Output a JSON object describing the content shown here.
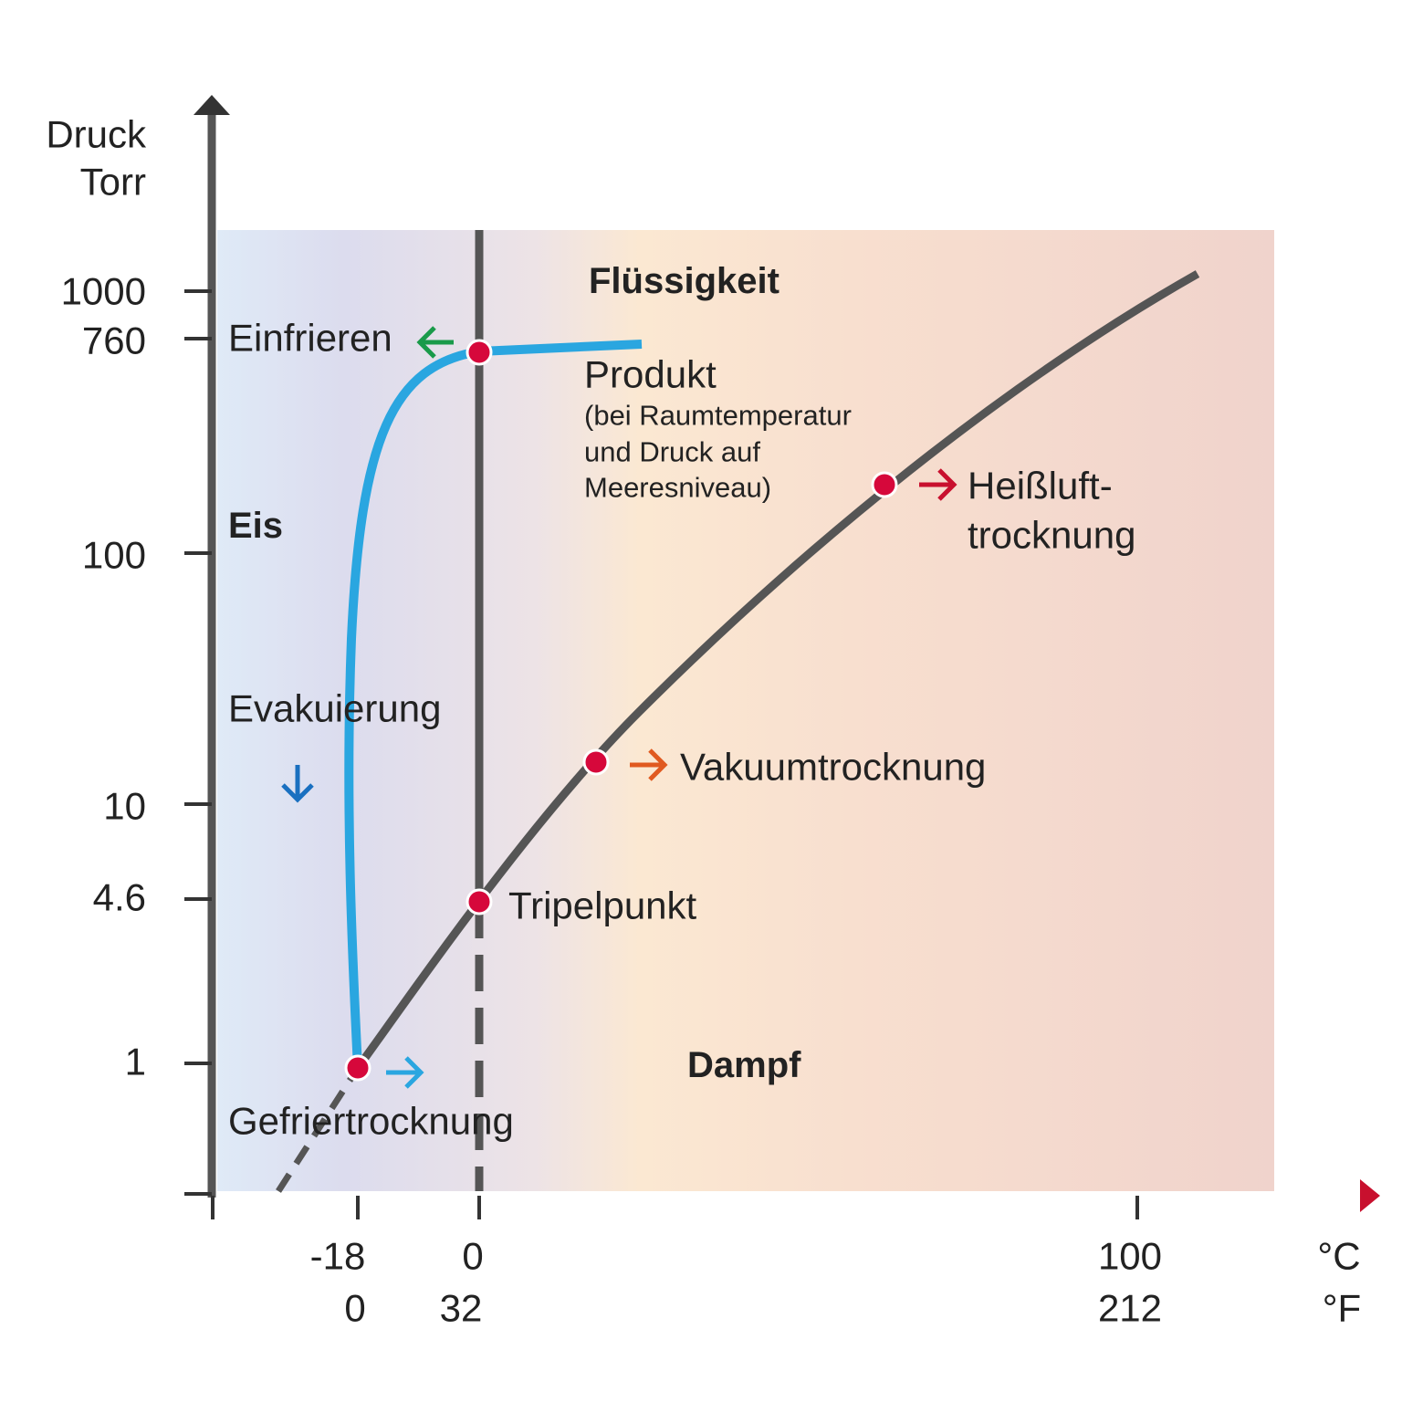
{
  "y_axis": {
    "label_lines": [
      "Druck",
      "Torr"
    ],
    "ticks": [
      "1000",
      "760",
      "100",
      "10",
      "4.6",
      "1"
    ]
  },
  "x_axis": {
    "celsius_ticks": [
      "-18",
      "0",
      "100"
    ],
    "celsius_unit": "°C",
    "fahrenheit_ticks": [
      "0",
      "32",
      "212"
    ],
    "fahrenheit_unit": "°F"
  },
  "regions": {
    "liquid": "Flüssigkeit",
    "ice": "Eis",
    "vapor": "Dampf"
  },
  "labels": {
    "freezing": "Einfrieren",
    "product": "Produkt",
    "product_note": [
      "(bei Raumtemperatur",
      "und Druck auf",
      "Meeresniveau)"
    ],
    "hot_air_drying": [
      "Heißluft-",
      "trocknung"
    ],
    "evacuation": "Evakuierung",
    "vacuum_drying": "Vakuumtrocknung",
    "triple_point": "Tripelpunkt",
    "freeze_drying": "Gefriertrocknung"
  }
}
